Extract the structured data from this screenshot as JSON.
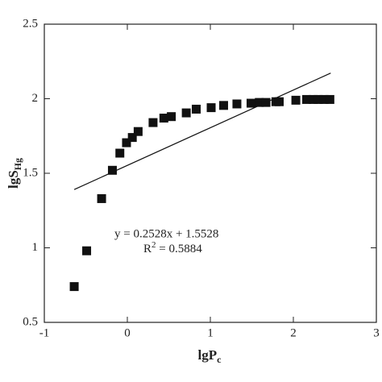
{
  "chart_data": {
    "type": "scatter",
    "x_label": {
      "main": "lgP",
      "sub": "c"
    },
    "y_label": {
      "main": "lgS",
      "sub": "Hg"
    },
    "annotations": [
      "y = 0.2528x + 1.5528",
      {
        "main": "R",
        "sup": "2",
        "rest": " = 0.5884"
      }
    ],
    "xlim": [
      -1,
      3
    ],
    "xticks": [
      -1,
      0,
      1,
      2,
      3
    ],
    "ylim": [
      0.5,
      2.5
    ],
    "yticks": [
      0.5,
      1,
      1.5,
      2,
      2.5
    ],
    "color": "#111111",
    "x": [
      -0.64,
      -0.49,
      -0.31,
      -0.18,
      -0.09,
      -0.01,
      0.06,
      0.13,
      0.31,
      0.44,
      0.53,
      0.71,
      0.83,
      1.01,
      1.16,
      1.32,
      1.49,
      1.59,
      1.67,
      1.79,
      1.83,
      2.03,
      2.16,
      2.24,
      2.3,
      2.37,
      2.44
    ],
    "values": [
      0.74,
      0.98,
      1.33,
      1.52,
      1.635,
      1.705,
      1.74,
      1.78,
      1.84,
      1.87,
      1.88,
      1.905,
      1.93,
      1.94,
      1.955,
      1.965,
      1.97,
      1.975,
      1.975,
      1.98,
      1.98,
      1.99,
      1.995,
      1.995,
      1.995,
      1.995,
      1.995
    ],
    "trend_line": {
      "x": [
        -0.64,
        2.45
      ],
      "values": [
        1.391,
        2.172
      ]
    }
  }
}
